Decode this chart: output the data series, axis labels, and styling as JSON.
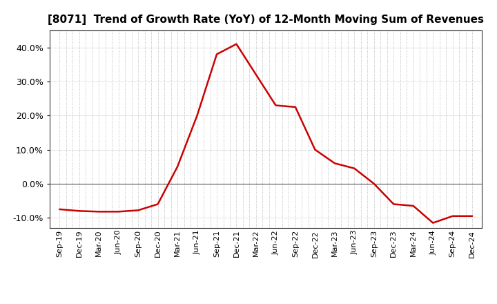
{
  "title": "[8071]  Trend of Growth Rate (YoY) of 12-Month Moving Sum of Revenues",
  "line_color": "#cc0000",
  "line_width": 1.8,
  "background_color": "#ffffff",
  "plot_bg_color": "#ffffff",
  "grid_color": "#999999",
  "ylim": [
    -0.13,
    0.45
  ],
  "yticks": [
    -0.1,
    0.0,
    0.1,
    0.2,
    0.3,
    0.4
  ],
  "x_labels": [
    "Sep-19",
    "Dec-19",
    "Mar-20",
    "Jun-20",
    "Sep-20",
    "Dec-20",
    "Mar-21",
    "Jun-21",
    "Sep-21",
    "Dec-21",
    "Mar-22",
    "Jun-22",
    "Sep-22",
    "Dec-22",
    "Mar-23",
    "Jun-23",
    "Sep-23",
    "Dec-23",
    "Mar-24",
    "Jun-24",
    "Sep-24",
    "Dec-24"
  ],
  "values": [
    -0.075,
    -0.08,
    -0.082,
    -0.082,
    -0.078,
    -0.06,
    0.05,
    0.2,
    0.38,
    0.41,
    0.32,
    0.23,
    0.225,
    0.1,
    0.06,
    0.045,
    0.0,
    -0.06,
    -0.065,
    -0.115,
    -0.095,
    -0.095
  ],
  "title_fontsize": 11,
  "tick_fontsize": 9,
  "xtick_fontsize": 8
}
